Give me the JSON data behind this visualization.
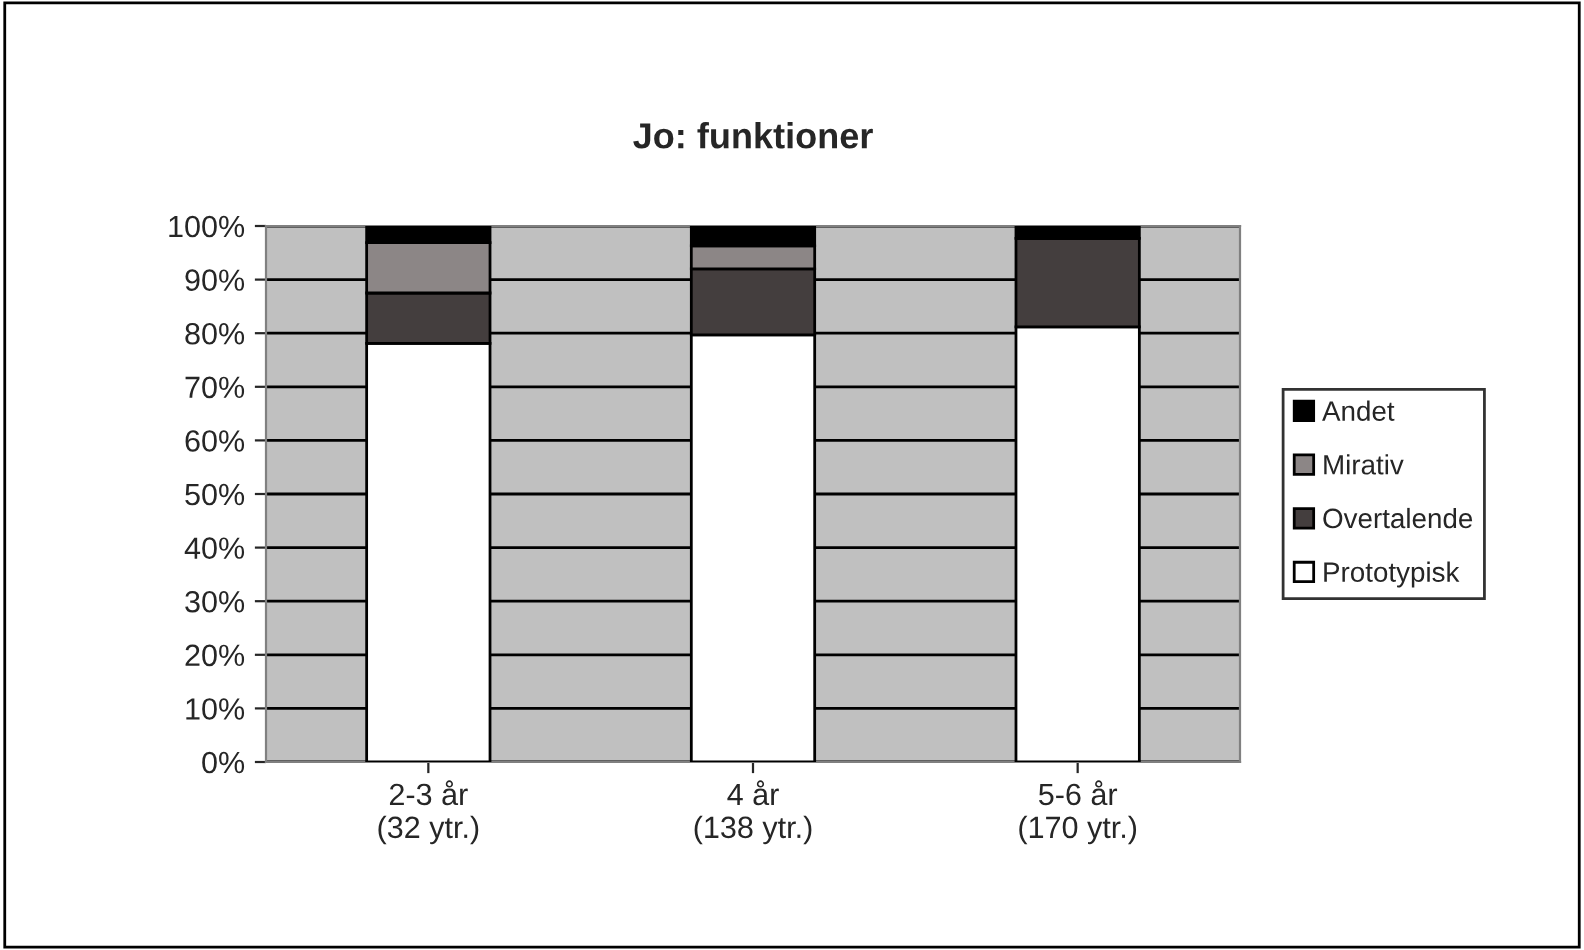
{
  "chart_data": {
    "type": "bar",
    "title": "Jo: funktioner",
    "stacked": true,
    "categories": [
      "2-3 år\n(32 ytr.)",
      "4 år\n(138 ytr.)",
      "5-6 år\n(170 ytr.)"
    ],
    "series": [
      {
        "name": "Prototypisk",
        "color": "#ffffff",
        "values": [
          78.1,
          79.7,
          81.2
        ]
      },
      {
        "name": "Overtalende",
        "color": "#443e3e",
        "values": [
          9.4,
          12.3,
          16.5
        ]
      },
      {
        "name": "Mirativ",
        "color": "#8c8686",
        "values": [
          9.4,
          4.3,
          0
        ]
      },
      {
        "name": "Andet",
        "color": "#000000",
        "values": [
          3.1,
          3.6,
          2.4
        ]
      }
    ],
    "ylim": [
      0,
      100
    ],
    "yticks": [
      {
        "value": 0,
        "label": "0%"
      },
      {
        "value": 10,
        "label": "10%"
      },
      {
        "value": 20,
        "label": "20%"
      },
      {
        "value": 30,
        "label": "30%"
      },
      {
        "value": 40,
        "label": "40%"
      },
      {
        "value": 50,
        "label": "50%"
      },
      {
        "value": 60,
        "label": "60%"
      },
      {
        "value": 70,
        "label": "70%"
      },
      {
        "value": 80,
        "label": "80%"
      },
      {
        "value": 90,
        "label": "90%"
      },
      {
        "value": 100,
        "label": "100%"
      }
    ],
    "grid": "y",
    "legend": "right"
  }
}
